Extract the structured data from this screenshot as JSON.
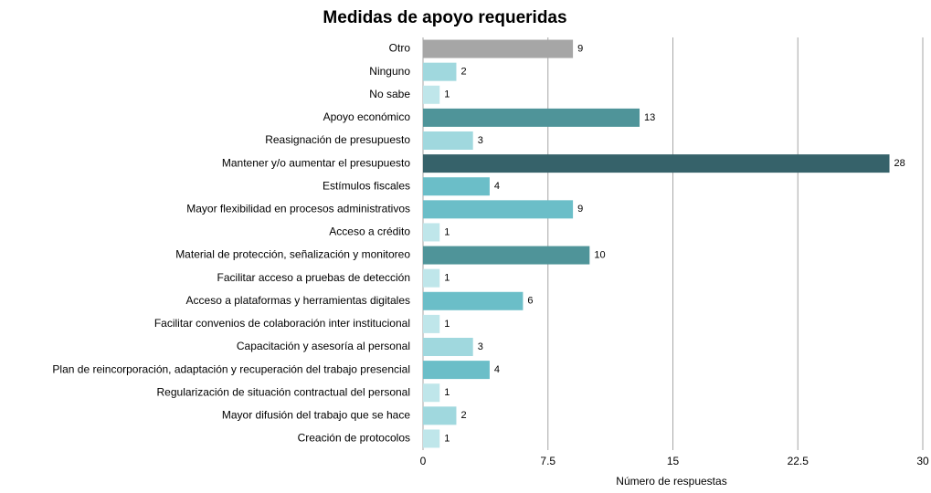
{
  "chart_data": {
    "type": "bar",
    "orientation": "horizontal",
    "title": "Medidas de apoyo requeridas",
    "x_label": "Número de respuestas",
    "categories": [
      "Otro",
      "Ninguno",
      "No sabe",
      "Apoyo económico",
      "Reasignación de presupuesto",
      "Mantener y/o aumentar el presupuesto",
      "Estímulos fiscales",
      "Mayor flexibilidad en procesos administrativos",
      "Acceso a crédito",
      "Material de protección, señalización y monitoreo",
      "Facilitar acceso a pruebas de detección",
      "Acceso a plataformas y herramientas digitales",
      "Facilitar convenios de colaboración inter institucional",
      "Capacitación y asesoría al personal",
      "Plan de reincorporación, adaptación y recuperación del trabajo presencial",
      "Regularización de situación contractual del personal",
      "Mayor difusión del trabajo que se hace",
      "Creación de protocolos"
    ],
    "values": [
      9,
      2,
      1,
      13,
      3,
      28,
      4,
      9,
      1,
      10,
      1,
      6,
      1,
      3,
      4,
      1,
      2,
      1
    ],
    "colors": [
      "#a6a6a6",
      "#a0d8de",
      "#bfe6ea",
      "#4f9499",
      "#a0d8de",
      "#36626a",
      "#6bbec8",
      "#6bbec8",
      "#bfe6ea",
      "#4f9499",
      "#bfe6ea",
      "#6bbec8",
      "#bfe6ea",
      "#a0d8de",
      "#6bbec8",
      "#bfe6ea",
      "#a0d8de",
      "#bfe6ea"
    ],
    "xlim": [
      0,
      30
    ],
    "xticks": [
      0,
      7.5,
      15,
      22.5,
      30
    ],
    "grid": true
  }
}
